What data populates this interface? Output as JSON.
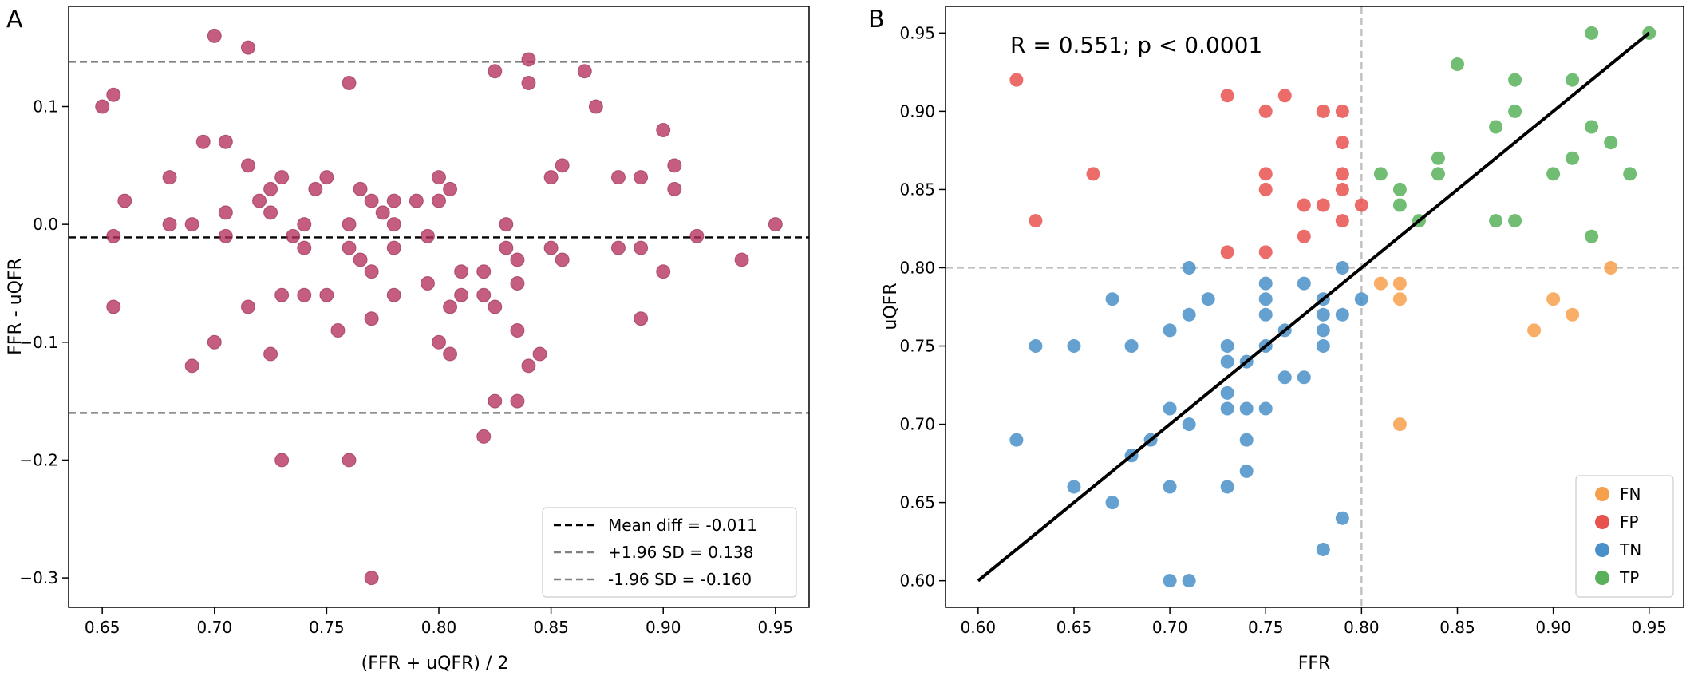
{
  "chart_data": [
    {
      "panel_label": "A",
      "type": "scatter",
      "xlabel": "(FFR + uQFR) / 2",
      "ylabel": "FFR - uQFR",
      "xlim": [
        0.635,
        0.965
      ],
      "ylim": [
        -0.325,
        0.185
      ],
      "x_ticks": [
        0.65,
        0.7,
        0.75,
        0.8,
        0.85,
        0.9,
        0.95
      ],
      "x_tick_labels": [
        "0.65",
        "0.70",
        "0.75",
        "0.80",
        "0.85",
        "0.90",
        "0.95"
      ],
      "y_ticks": [
        -0.3,
        -0.2,
        -0.1,
        0.0,
        0.1
      ],
      "y_tick_labels": [
        "−0.3",
        "−0.2",
        "−0.1",
        "0.0",
        "0.1"
      ],
      "grid": false,
      "point_color": "#b5305c",
      "points": [
        [
          0.65,
          0.1
        ],
        [
          0.655,
          0.11
        ],
        [
          0.66,
          0.02
        ],
        [
          0.655,
          -0.01
        ],
        [
          0.655,
          -0.07
        ],
        [
          0.68,
          0.04
        ],
        [
          0.68,
          0.0
        ],
        [
          0.69,
          0.0
        ],
        [
          0.69,
          -0.12
        ],
        [
          0.695,
          0.07
        ],
        [
          0.7,
          0.16
        ],
        [
          0.7,
          -0.1
        ],
        [
          0.705,
          0.07
        ],
        [
          0.705,
          0.01
        ],
        [
          0.705,
          -0.01
        ],
        [
          0.715,
          0.15
        ],
        [
          0.715,
          0.05
        ],
        [
          0.715,
          -0.07
        ],
        [
          0.72,
          0.02
        ],
        [
          0.725,
          0.03
        ],
        [
          0.725,
          0.01
        ],
        [
          0.725,
          -0.11
        ],
        [
          0.73,
          0.04
        ],
        [
          0.73,
          -0.06
        ],
        [
          0.73,
          -0.2
        ],
        [
          0.735,
          -0.01
        ],
        [
          0.74,
          0.0
        ],
        [
          0.74,
          -0.02
        ],
        [
          0.74,
          -0.06
        ],
        [
          0.745,
          0.03
        ],
        [
          0.75,
          0.04
        ],
        [
          0.75,
          -0.06
        ],
        [
          0.755,
          -0.09
        ],
        [
          0.76,
          0.12
        ],
        [
          0.76,
          0.0
        ],
        [
          0.76,
          -0.02
        ],
        [
          0.76,
          -0.2
        ],
        [
          0.765,
          0.03
        ],
        [
          0.765,
          -0.03
        ],
        [
          0.77,
          0.02
        ],
        [
          0.77,
          -0.04
        ],
        [
          0.77,
          -0.08
        ],
        [
          0.77,
          -0.3
        ],
        [
          0.775,
          0.01
        ],
        [
          0.78,
          0.02
        ],
        [
          0.78,
          0.0
        ],
        [
          0.78,
          -0.02
        ],
        [
          0.78,
          -0.06
        ],
        [
          0.79,
          0.02
        ],
        [
          0.795,
          -0.01
        ],
        [
          0.795,
          -0.05
        ],
        [
          0.8,
          0.04
        ],
        [
          0.8,
          0.02
        ],
        [
          0.8,
          -0.1
        ],
        [
          0.805,
          0.03
        ],
        [
          0.805,
          -0.07
        ],
        [
          0.805,
          -0.11
        ],
        [
          0.81,
          -0.04
        ],
        [
          0.81,
          -0.06
        ],
        [
          0.82,
          -0.04
        ],
        [
          0.82,
          -0.06
        ],
        [
          0.82,
          -0.18
        ],
        [
          0.825,
          0.13
        ],
        [
          0.825,
          -0.07
        ],
        [
          0.825,
          -0.15
        ],
        [
          0.83,
          0.0
        ],
        [
          0.83,
          -0.02
        ],
        [
          0.835,
          -0.03
        ],
        [
          0.835,
          -0.05
        ],
        [
          0.835,
          -0.09
        ],
        [
          0.835,
          -0.15
        ],
        [
          0.84,
          0.14
        ],
        [
          0.84,
          0.12
        ],
        [
          0.84,
          -0.12
        ],
        [
          0.845,
          -0.11
        ],
        [
          0.85,
          0.04
        ],
        [
          0.85,
          -0.02
        ],
        [
          0.855,
          0.05
        ],
        [
          0.855,
          -0.03
        ],
        [
          0.865,
          0.13
        ],
        [
          0.87,
          0.1
        ],
        [
          0.88,
          0.04
        ],
        [
          0.88,
          -0.02
        ],
        [
          0.89,
          0.04
        ],
        [
          0.89,
          -0.02
        ],
        [
          0.89,
          -0.08
        ],
        [
          0.9,
          0.08
        ],
        [
          0.9,
          -0.04
        ],
        [
          0.905,
          0.05
        ],
        [
          0.905,
          0.03
        ],
        [
          0.915,
          -0.01
        ],
        [
          0.935,
          -0.03
        ],
        [
          0.95,
          0.0
        ]
      ],
      "reference_lines": [
        {
          "label": "Mean diff = -0.011",
          "y": -0.011,
          "color": "#000000",
          "style": "dashed"
        },
        {
          "label": "+1.96 SD = 0.138",
          "y": 0.138,
          "color": "#808080",
          "style": "dashed"
        },
        {
          "label": "-1.96 SD = -0.160",
          "y": -0.16,
          "color": "#808080",
          "style": "dashed"
        }
      ],
      "legend_placement": "lower-right"
    },
    {
      "panel_label": "B",
      "type": "scatter",
      "xlabel": "FFR",
      "ylabel": "uQFR",
      "xlim": [
        0.583,
        0.968
      ],
      "ylim": [
        0.583,
        0.967
      ],
      "x_ticks": [
        0.6,
        0.65,
        0.7,
        0.75,
        0.8,
        0.85,
        0.9,
        0.95
      ],
      "x_tick_labels": [
        "0.60",
        "0.65",
        "0.70",
        "0.75",
        "0.80",
        "0.85",
        "0.90",
        "0.95"
      ],
      "y_ticks": [
        0.6,
        0.65,
        0.7,
        0.75,
        0.8,
        0.85,
        0.9,
        0.95
      ],
      "y_tick_labels": [
        "0.60",
        "0.65",
        "0.70",
        "0.75",
        "0.80",
        "0.85",
        "0.90",
        "0.95"
      ],
      "grid": false,
      "annotation": "R = 0.551; p < 0.0001",
      "threshold_lines": {
        "x": 0.8,
        "y": 0.8,
        "color": "#c0c0c0",
        "style": "dashed"
      },
      "regression_line": {
        "x": [
          0.6,
          0.95
        ],
        "y": [
          0.6,
          0.95
        ],
        "color": "#000000"
      },
      "legend_placement": "lower-right",
      "series": [
        {
          "name": "FN",
          "color": "#f7a04b",
          "points": [
            [
              0.81,
              0.79
            ],
            [
              0.82,
              0.79
            ],
            [
              0.82,
              0.78
            ],
            [
              0.82,
              0.7
            ],
            [
              0.89,
              0.76
            ],
            [
              0.9,
              0.78
            ],
            [
              0.91,
              0.77
            ],
            [
              0.93,
              0.8
            ]
          ]
        },
        {
          "name": "FP",
          "color": "#e8524e",
          "points": [
            [
              0.62,
              0.92
            ],
            [
              0.63,
              0.83
            ],
            [
              0.66,
              0.86
            ],
            [
              0.73,
              0.91
            ],
            [
              0.73,
              0.81
            ],
            [
              0.75,
              0.9
            ],
            [
              0.75,
              0.86
            ],
            [
              0.75,
              0.85
            ],
            [
              0.75,
              0.81
            ],
            [
              0.76,
              0.91
            ],
            [
              0.77,
              0.84
            ],
            [
              0.77,
              0.82
            ],
            [
              0.78,
              0.9
            ],
            [
              0.78,
              0.84
            ],
            [
              0.79,
              0.9
            ],
            [
              0.79,
              0.88
            ],
            [
              0.79,
              0.86
            ],
            [
              0.79,
              0.85
            ],
            [
              0.79,
              0.83
            ],
            [
              0.8,
              0.84
            ]
          ]
        },
        {
          "name": "TN",
          "color": "#4a90c8",
          "points": [
            [
              0.62,
              0.69
            ],
            [
              0.63,
              0.75
            ],
            [
              0.65,
              0.75
            ],
            [
              0.65,
              0.66
            ],
            [
              0.67,
              0.78
            ],
            [
              0.67,
              0.65
            ],
            [
              0.68,
              0.75
            ],
            [
              0.68,
              0.68
            ],
            [
              0.69,
              0.69
            ],
            [
              0.7,
              0.76
            ],
            [
              0.7,
              0.71
            ],
            [
              0.7,
              0.66
            ],
            [
              0.7,
              0.6
            ],
            [
              0.71,
              0.8
            ],
            [
              0.71,
              0.77
            ],
            [
              0.71,
              0.7
            ],
            [
              0.71,
              0.6
            ],
            [
              0.72,
              0.78
            ],
            [
              0.73,
              0.75
            ],
            [
              0.73,
              0.74
            ],
            [
              0.73,
              0.72
            ],
            [
              0.73,
              0.71
            ],
            [
              0.73,
              0.66
            ],
            [
              0.74,
              0.74
            ],
            [
              0.74,
              0.71
            ],
            [
              0.74,
              0.69
            ],
            [
              0.74,
              0.67
            ],
            [
              0.75,
              0.79
            ],
            [
              0.75,
              0.78
            ],
            [
              0.75,
              0.77
            ],
            [
              0.75,
              0.75
            ],
            [
              0.75,
              0.71
            ],
            [
              0.76,
              0.76
            ],
            [
              0.76,
              0.73
            ],
            [
              0.77,
              0.79
            ],
            [
              0.77,
              0.73
            ],
            [
              0.78,
              0.78
            ],
            [
              0.78,
              0.77
            ],
            [
              0.78,
              0.76
            ],
            [
              0.78,
              0.75
            ],
            [
              0.78,
              0.62
            ],
            [
              0.79,
              0.8
            ],
            [
              0.79,
              0.77
            ],
            [
              0.79,
              0.64
            ],
            [
              0.8,
              0.78
            ]
          ]
        },
        {
          "name": "TP",
          "color": "#58b15a",
          "points": [
            [
              0.81,
              0.86
            ],
            [
              0.82,
              0.85
            ],
            [
              0.82,
              0.84
            ],
            [
              0.83,
              0.83
            ],
            [
              0.84,
              0.87
            ],
            [
              0.84,
              0.86
            ],
            [
              0.85,
              0.93
            ],
            [
              0.87,
              0.89
            ],
            [
              0.87,
              0.83
            ],
            [
              0.88,
              0.92
            ],
            [
              0.88,
              0.9
            ],
            [
              0.88,
              0.83
            ],
            [
              0.9,
              0.86
            ],
            [
              0.91,
              0.92
            ],
            [
              0.91,
              0.87
            ],
            [
              0.92,
              0.95
            ],
            [
              0.92,
              0.89
            ],
            [
              0.92,
              0.82
            ],
            [
              0.93,
              0.88
            ],
            [
              0.94,
              0.86
            ],
            [
              0.95,
              0.95
            ]
          ]
        }
      ]
    }
  ]
}
